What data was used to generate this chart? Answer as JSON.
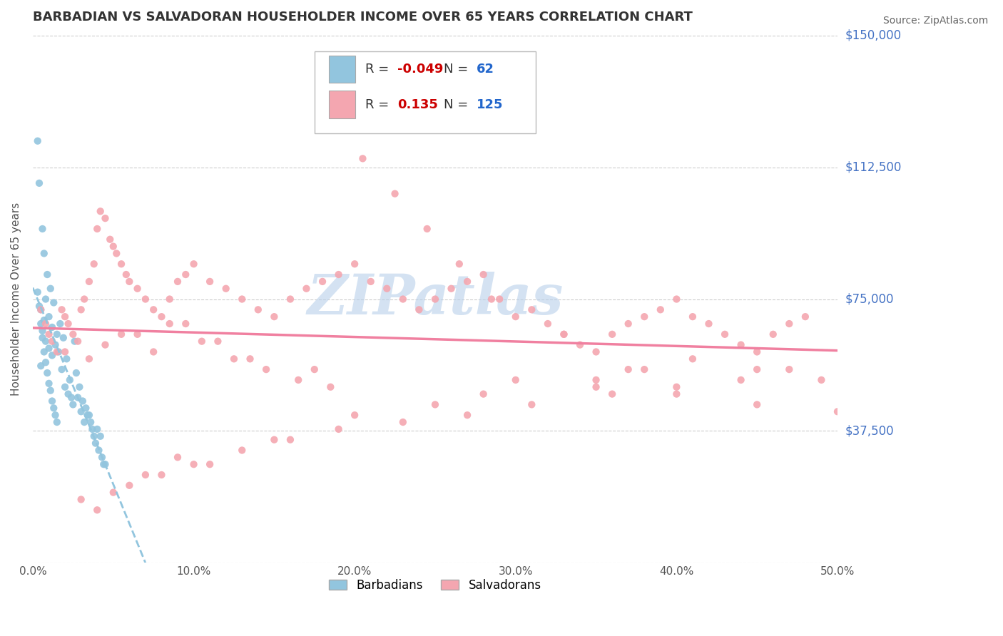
{
  "title": "BARBADIAN VS SALVADORAN HOUSEHOLDER INCOME OVER 65 YEARS CORRELATION CHART",
  "source": "Source: ZipAtlas.com",
  "ylabel": "Householder Income Over 65 years",
  "xlabel_ticks": [
    "0.0%",
    "10.0%",
    "20.0%",
    "30.0%",
    "40.0%",
    "50.0%"
  ],
  "xlabel_vals": [
    0.0,
    10.0,
    20.0,
    30.0,
    40.0,
    50.0
  ],
  "ytick_vals": [
    0,
    37500,
    75000,
    112500,
    150000
  ],
  "ytick_labels": [
    "$0",
    "$37,500",
    "$75,000",
    "$112,500",
    "$150,000"
  ],
  "xlim": [
    0.0,
    50.0
  ],
  "ylim": [
    0,
    150000
  ],
  "blue_R": -0.049,
  "blue_N": 62,
  "pink_R": 0.135,
  "pink_N": 125,
  "blue_color": "#92C5DE",
  "pink_color": "#F4A6B0",
  "blue_line_color": "#92C5DE",
  "pink_line_color": "#F080A0",
  "blue_label": "Barbadians",
  "pink_label": "Salvadorans",
  "watermark": "ZIPatlas",
  "watermark_color": "#B8D0EA",
  "title_color": "#333333",
  "source_color": "#666666",
  "axis_label_color": "#555555",
  "ytick_color": "#4472C4",
  "grid_color": "#CCCCCC",
  "blue_scatter_x": [
    0.3,
    0.4,
    0.5,
    0.5,
    0.6,
    0.6,
    0.7,
    0.7,
    0.8,
    0.8,
    0.9,
    1.0,
    1.0,
    1.1,
    1.2,
    1.2,
    1.3,
    1.4,
    1.5,
    1.6,
    1.7,
    1.8,
    1.9,
    2.0,
    2.1,
    2.2,
    2.3,
    2.4,
    2.5,
    2.6,
    2.7,
    2.8,
    2.9,
    3.0,
    3.1,
    3.2,
    3.3,
    3.4,
    3.5,
    3.6,
    3.7,
    3.8,
    3.9,
    4.0,
    4.1,
    4.2,
    4.3,
    4.4,
    4.5,
    0.3,
    0.4,
    0.5,
    0.6,
    0.7,
    0.8,
    0.9,
    1.0,
    1.1,
    1.2,
    1.3,
    1.4,
    1.5
  ],
  "blue_scatter_y": [
    120000,
    108000,
    56000,
    72000,
    95000,
    66000,
    88000,
    69000,
    75000,
    63000,
    82000,
    70000,
    61000,
    78000,
    67000,
    59000,
    74000,
    62000,
    65000,
    60000,
    68000,
    55000,
    64000,
    50000,
    58000,
    48000,
    52000,
    47000,
    45000,
    63000,
    54000,
    47000,
    50000,
    43000,
    46000,
    40000,
    44000,
    42000,
    42000,
    40000,
    38000,
    36000,
    34000,
    38000,
    32000,
    36000,
    30000,
    28000,
    28000,
    77000,
    73000,
    68000,
    64000,
    60000,
    57000,
    54000,
    51000,
    49000,
    46000,
    44000,
    42000,
    40000
  ],
  "pink_scatter_x": [
    0.5,
    0.8,
    1.0,
    1.2,
    1.5,
    1.8,
    2.0,
    2.2,
    2.5,
    2.8,
    3.0,
    3.2,
    3.5,
    3.8,
    4.0,
    4.2,
    4.5,
    4.8,
    5.0,
    5.2,
    5.5,
    5.8,
    6.0,
    6.5,
    7.0,
    7.5,
    8.0,
    8.5,
    9.0,
    9.5,
    10.0,
    11.0,
    12.0,
    13.0,
    14.0,
    15.0,
    16.0,
    17.0,
    18.0,
    19.0,
    20.0,
    21.0,
    22.0,
    23.0,
    24.0,
    25.0,
    26.0,
    27.0,
    28.0,
    29.0,
    30.0,
    31.0,
    32.0,
    33.0,
    34.0,
    35.0,
    36.0,
    37.0,
    38.0,
    39.0,
    40.0,
    41.0,
    42.0,
    43.0,
    44.0,
    45.0,
    46.0,
    47.0,
    48.0,
    25.0,
    28.0,
    35.0,
    38.0,
    20.0,
    15.0,
    10.0,
    8.0,
    5.0,
    3.0,
    6.0,
    4.0,
    7.0,
    9.0,
    11.0,
    13.0,
    16.0,
    19.0,
    23.0,
    27.0,
    31.0,
    36.0,
    40.0,
    44.0,
    47.0,
    2.0,
    3.5,
    4.5,
    6.5,
    8.5,
    10.5,
    12.5,
    14.5,
    16.5,
    18.5,
    20.5,
    22.5,
    24.5,
    26.5,
    28.5,
    33.0,
    37.0,
    41.0,
    45.0,
    49.0,
    5.5,
    7.5,
    9.5,
    11.5,
    13.5,
    17.5,
    30.0,
    35.0,
    40.0,
    45.0,
    50.0
  ],
  "pink_scatter_y": [
    72000,
    68000,
    65000,
    63000,
    60000,
    72000,
    70000,
    68000,
    65000,
    63000,
    72000,
    75000,
    80000,
    85000,
    95000,
    100000,
    98000,
    92000,
    90000,
    88000,
    85000,
    82000,
    80000,
    78000,
    75000,
    72000,
    70000,
    75000,
    80000,
    82000,
    85000,
    80000,
    78000,
    75000,
    72000,
    70000,
    75000,
    78000,
    80000,
    82000,
    85000,
    80000,
    78000,
    75000,
    72000,
    75000,
    78000,
    80000,
    82000,
    75000,
    70000,
    72000,
    68000,
    65000,
    62000,
    60000,
    65000,
    68000,
    70000,
    72000,
    75000,
    70000,
    68000,
    65000,
    62000,
    60000,
    65000,
    68000,
    70000,
    45000,
    48000,
    52000,
    55000,
    42000,
    35000,
    28000,
    25000,
    20000,
    18000,
    22000,
    15000,
    25000,
    30000,
    28000,
    32000,
    35000,
    38000,
    40000,
    42000,
    45000,
    48000,
    50000,
    52000,
    55000,
    60000,
    58000,
    62000,
    65000,
    68000,
    63000,
    58000,
    55000,
    52000,
    50000,
    115000,
    105000,
    95000,
    85000,
    75000,
    65000,
    55000,
    58000,
    55000,
    52000,
    65000,
    60000,
    68000,
    63000,
    58000,
    55000,
    52000,
    50000,
    48000,
    45000,
    43000
  ]
}
